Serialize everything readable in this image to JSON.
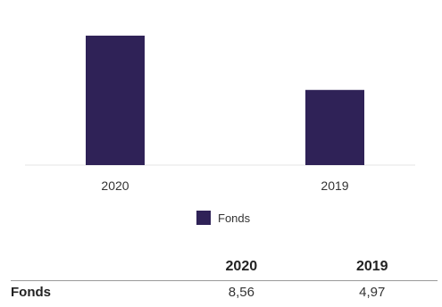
{
  "chart_data": {
    "type": "bar",
    "categories": [
      "2020",
      "2019"
    ],
    "series": [
      {
        "name": "Fonds",
        "values": [
          8.56,
          4.97
        ],
        "color": "#2f2257"
      }
    ],
    "ylim": [
      0,
      9.5
    ],
    "grid": false,
    "legend_position": "bottom"
  },
  "legend": {
    "label": "Fonds",
    "color": "#2f2257"
  },
  "table": {
    "headers": [
      "",
      "2020",
      "2019"
    ],
    "rows": [
      {
        "label": "Fonds",
        "cells": [
          "8,56",
          "4,97"
        ]
      }
    ]
  }
}
